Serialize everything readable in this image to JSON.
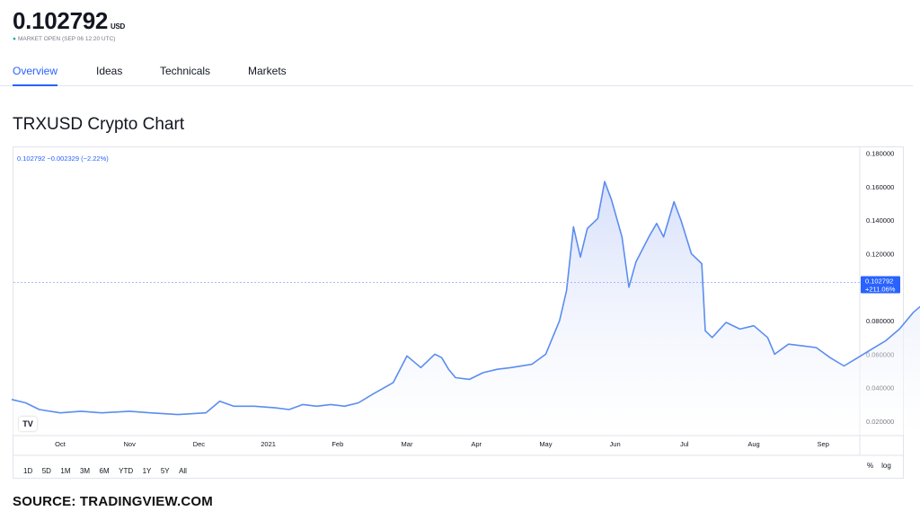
{
  "header": {
    "price": "0.102792",
    "price_unit": "USD",
    "market_status": "MARKET OPEN (SEP 06 12:20 UTC)"
  },
  "tabs": [
    {
      "label": "Overview",
      "active": true
    },
    {
      "label": "Ideas",
      "active": false
    },
    {
      "label": "Technicals",
      "active": false
    },
    {
      "label": "Markets",
      "active": false
    }
  ],
  "section_title": "TRXUSD Crypto Chart",
  "legend": "0.102792  −0.002329 (−2.22%)",
  "last_label": {
    "price": "0.102792",
    "change": "+211.06%"
  },
  "range_buttons": [
    "1D",
    "5D",
    "1M",
    "3M",
    "6M",
    "YTD",
    "1Y",
    "5Y",
    "All"
  ],
  "scale_options": [
    "%",
    "log"
  ],
  "tv_logo": "TV",
  "source": "SOURCE: TRADINGVIEW.COM",
  "colors": {
    "line": "#5b8def",
    "accent": "#2962ff",
    "fill_top": "#d5defa"
  },
  "chart_data": {
    "type": "area",
    "title": "",
    "xlabel": "",
    "ylabel": "",
    "ylim": [
      0.012,
      0.184
    ],
    "y_ticks": [
      "0.180000",
      "0.160000",
      "0.140000",
      "0.120000",
      "0.100000",
      "0.080000",
      "0.060000",
      "0.040000",
      "0.020000"
    ],
    "x_ticks": [
      "Oct",
      "Nov",
      "Dec",
      "2021",
      "Feb",
      "Mar",
      "Apr",
      "May",
      "Jun",
      "Jul",
      "Aug",
      "Sep"
    ],
    "series": [
      {
        "values": [
          [
            0.0,
            0.033
          ],
          [
            0.2,
            0.031
          ],
          [
            0.4,
            0.027
          ],
          [
            0.7,
            0.025
          ],
          [
            1.0,
            0.026
          ],
          [
            1.3,
            0.025
          ],
          [
            1.7,
            0.026
          ],
          [
            2.0,
            0.025
          ],
          [
            2.4,
            0.024
          ],
          [
            2.8,
            0.025
          ],
          [
            3.0,
            0.032
          ],
          [
            3.2,
            0.029
          ],
          [
            3.5,
            0.029
          ],
          [
            3.8,
            0.028
          ],
          [
            4.0,
            0.027
          ],
          [
            4.2,
            0.03
          ],
          [
            4.4,
            0.029
          ],
          [
            4.6,
            0.03
          ],
          [
            4.8,
            0.029
          ],
          [
            5.0,
            0.031
          ],
          [
            5.2,
            0.036
          ],
          [
            5.5,
            0.043
          ],
          [
            5.7,
            0.059
          ],
          [
            5.9,
            0.052
          ],
          [
            6.1,
            0.06
          ],
          [
            6.2,
            0.058
          ],
          [
            6.3,
            0.051
          ],
          [
            6.4,
            0.046
          ],
          [
            6.6,
            0.045
          ],
          [
            6.8,
            0.049
          ],
          [
            7.0,
            0.051
          ],
          [
            7.2,
            0.052
          ],
          [
            7.5,
            0.054
          ],
          [
            7.7,
            0.06
          ],
          [
            7.9,
            0.08
          ],
          [
            8.0,
            0.098
          ],
          [
            8.1,
            0.136
          ],
          [
            8.2,
            0.118
          ],
          [
            8.3,
            0.135
          ],
          [
            8.45,
            0.141
          ],
          [
            8.55,
            0.163
          ],
          [
            8.65,
            0.152
          ],
          [
            8.8,
            0.13
          ],
          [
            8.9,
            0.1
          ],
          [
            9.0,
            0.115
          ],
          [
            9.2,
            0.131
          ],
          [
            9.3,
            0.138
          ],
          [
            9.4,
            0.13
          ],
          [
            9.55,
            0.151
          ],
          [
            9.65,
            0.14
          ],
          [
            9.8,
            0.12
          ],
          [
            9.95,
            0.114
          ],
          [
            10.0,
            0.074
          ],
          [
            10.1,
            0.07
          ],
          [
            10.3,
            0.079
          ],
          [
            10.5,
            0.075
          ],
          [
            10.7,
            0.077
          ],
          [
            10.9,
            0.07
          ],
          [
            11.0,
            0.06
          ],
          [
            11.2,
            0.066
          ],
          [
            11.4,
            0.065
          ],
          [
            11.6,
            0.064
          ],
          [
            11.8,
            0.058
          ],
          [
            12.0,
            0.053
          ],
          [
            12.2,
            0.058
          ],
          [
            12.4,
            0.063
          ],
          [
            12.6,
            0.068
          ],
          [
            12.8,
            0.075
          ],
          [
            13.0,
            0.085
          ],
          [
            13.2,
            0.092
          ],
          [
            13.4,
            0.089
          ],
          [
            13.6,
            0.088
          ],
          [
            13.8,
            0.089
          ],
          [
            14.0,
            0.094
          ],
          [
            14.15,
            0.104
          ],
          [
            14.25,
            0.1028
          ]
        ]
      }
    ],
    "last_value": 0.102792,
    "grid": false,
    "baseline_dashed": true
  }
}
